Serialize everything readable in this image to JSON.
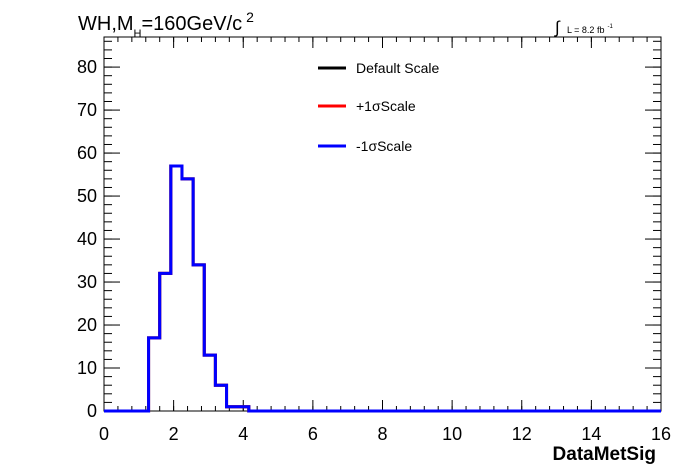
{
  "chart_data": {
    "type": "histogram",
    "title_main": "WH,M",
    "title_sub": "H",
    "title_rest": "=160GeV/c",
    "title_sup": "2",
    "lumi_text": "L = 8.2 fb",
    "lumi_sup": "-1",
    "lumi_integral": "∫",
    "xlabel": "DataMetSig",
    "xlim": [
      0,
      16
    ],
    "ylim": [
      0,
      87
    ],
    "xticks": [
      0,
      2,
      4,
      6,
      8,
      10,
      12,
      14,
      16
    ],
    "yticks": [
      0,
      10,
      20,
      30,
      40,
      50,
      60,
      70,
      80
    ],
    "bin_edges": [
      0,
      0.32,
      0.64,
      0.96,
      1.28,
      1.6,
      1.92,
      2.24,
      2.56,
      2.88,
      3.2,
      3.52,
      3.84,
      4.16,
      4.48,
      16
    ],
    "series": [
      {
        "name": "Default Scale",
        "color": "#000000",
        "values": [
          0,
          0,
          0,
          0,
          17,
          32,
          57,
          54,
          34,
          13,
          6,
          1,
          1,
          0,
          0
        ]
      },
      {
        "name": "+1σScale",
        "color": "#ff0000",
        "values": [
          0,
          0,
          0,
          0,
          17,
          32,
          57,
          54,
          34,
          13,
          6,
          1,
          1,
          0,
          0
        ]
      },
      {
        "name": "-1σScale",
        "color": "#0000ff",
        "values": [
          0,
          0,
          0,
          0,
          17,
          32,
          57,
          54,
          34,
          13,
          6,
          1,
          1,
          0,
          0
        ]
      }
    ],
    "legend_position": "top-center"
  }
}
